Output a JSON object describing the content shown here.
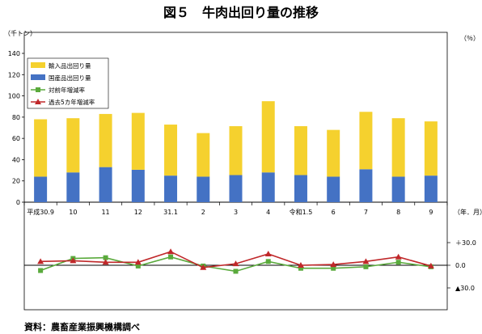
{
  "title": "図５　牛肉出回り量の推移",
  "source": "資料：農畜産業振興機構調べ",
  "chart_data": [
    {
      "type": "bar",
      "stacked": true,
      "categories": [
        "平成30.9",
        "10",
        "11",
        "12",
        "31.1",
        "2",
        "3",
        "4",
        "令和1.5",
        "6",
        "7",
        "8",
        "9"
      ],
      "y_unit": "（千トン）",
      "ylim": [
        0,
        140
      ],
      "yticks": [
        0,
        20,
        40,
        60,
        80,
        100,
        120,
        140
      ],
      "x_unit": "（年．月）",
      "legend_position": "top-left",
      "series": [
        {
          "name": "国産品出回り量",
          "color": "#4472c4",
          "values": [
            24,
            28,
            33,
            30.5,
            25,
            24,
            25.5,
            28,
            25.5,
            24,
            31,
            24,
            25
          ]
        },
        {
          "name": "輸入品出回り量",
          "color": "#f5d12e",
          "values": [
            54,
            51,
            50,
            53.5,
            48,
            41,
            46,
            67,
            46,
            44,
            54,
            55,
            51
          ]
        }
      ]
    },
    {
      "type": "line",
      "categories": [
        "平成30.9",
        "10",
        "11",
        "12",
        "31.1",
        "2",
        "3",
        "4",
        "令和1.5",
        "6",
        "7",
        "8",
        "9"
      ],
      "y_unit": "（％）",
      "ylim": [
        -30,
        30
      ],
      "yticks": [
        "＋30.0",
        "0.0",
        "▲30.0"
      ],
      "tick_values": [
        30,
        0,
        -30
      ],
      "series": [
        {
          "name": "対前年増減率",
          "color": "#5aaa3c",
          "marker": "square",
          "values": [
            -7,
            9,
            10,
            -1,
            11,
            -1,
            -8,
            5,
            -4,
            -4,
            -2,
            4,
            -2
          ]
        },
        {
          "name": "過去5カ年増減率",
          "color": "#c0282a",
          "marker": "triangle",
          "values": [
            5,
            6,
            4,
            4,
            18,
            -3,
            2,
            15,
            0,
            1,
            5,
            11,
            -1
          ]
        }
      ]
    }
  ]
}
